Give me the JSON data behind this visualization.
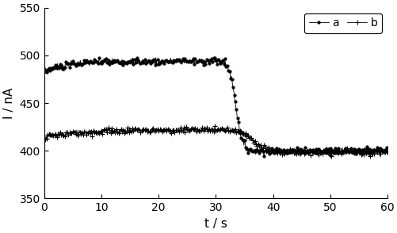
{
  "xlabel": "t / s",
  "ylabel": "I / nA",
  "xlim": [
    0,
    60
  ],
  "ylim": [
    350,
    550
  ],
  "yticks": [
    350,
    400,
    450,
    500,
    550
  ],
  "xticks": [
    0,
    10,
    20,
    30,
    40,
    50,
    60
  ],
  "line_color": "#000000",
  "legend_labels": [
    "a",
    "b"
  ],
  "noise_amp_a": 1.8,
  "noise_amp_b": 1.5,
  "seed": 7,
  "figsize": [
    5.02,
    2.94
  ],
  "dpi": 100,
  "marker_a": "o",
  "marker_b": "+",
  "markersize_a": 2.5,
  "markersize_b": 4.5,
  "markevery_a": 2,
  "markevery_b": 2,
  "linewidth": 0.6
}
